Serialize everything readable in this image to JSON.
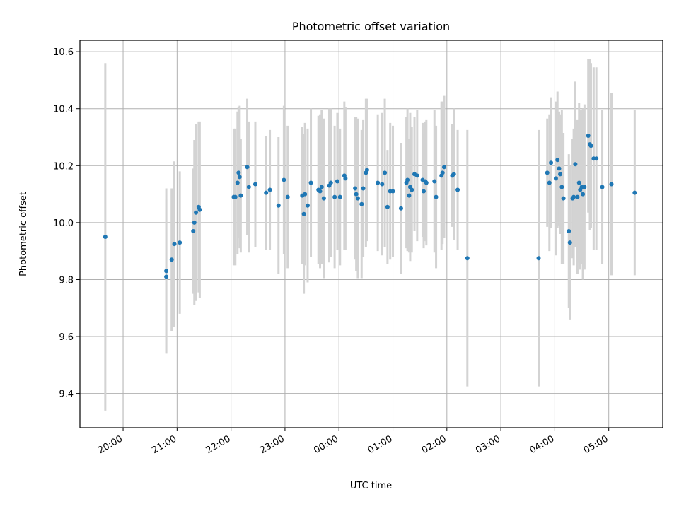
{
  "chart_data": {
    "type": "scatter",
    "title": "Photometric offset variation",
    "xlabel": "UTC time",
    "ylabel": "Photometric offset",
    "x_unit": "hours",
    "xlim": [
      -0.8,
      10.0
    ],
    "ylim": [
      9.28,
      10.64
    ],
    "grid": true,
    "x_ticks": [
      {
        "value": 0.0,
        "label": "20:00"
      },
      {
        "value": 1.0,
        "label": "21:00"
      },
      {
        "value": 2.0,
        "label": "22:00"
      },
      {
        "value": 3.0,
        "label": "23:00"
      },
      {
        "value": 4.0,
        "label": "00:00"
      },
      {
        "value": 5.0,
        "label": "01:00"
      },
      {
        "value": 6.0,
        "label": "02:00"
      },
      {
        "value": 7.0,
        "label": "03:00"
      },
      {
        "value": 8.0,
        "label": "04:00"
      },
      {
        "value": 9.0,
        "label": "05:00"
      }
    ],
    "y_ticks": [
      {
        "value": 9.4,
        "label": "9.4"
      },
      {
        "value": 9.6,
        "label": "9.6"
      },
      {
        "value": 9.8,
        "label": "9.8"
      },
      {
        "value": 10.0,
        "label": "10.0"
      },
      {
        "value": 10.2,
        "label": "10.2"
      },
      {
        "value": 10.4,
        "label": "10.4"
      },
      {
        "value": 10.6,
        "label": "10.6"
      }
    ],
    "marker_color": "#1f77b4",
    "errorbar_color": "#d3d3d3",
    "points": [
      [
        -0.33,
        9.95,
        0.61
      ],
      [
        0.8,
        9.83,
        0.29
      ],
      [
        0.8,
        9.81,
        0.27
      ],
      [
        0.9,
        9.87,
        0.25
      ],
      [
        0.95,
        9.925,
        0.29
      ],
      [
        1.05,
        9.93,
        0.25
      ],
      [
        1.3,
        9.97,
        0.22
      ],
      [
        1.32,
        10.0,
        0.29
      ],
      [
        1.35,
        10.035,
        0.31
      ],
      [
        1.4,
        10.055,
        0.3
      ],
      [
        1.42,
        10.045,
        0.31
      ],
      [
        2.05,
        10.09,
        0.24
      ],
      [
        2.08,
        10.09,
        0.24
      ],
      [
        2.12,
        10.14,
        0.25
      ],
      [
        2.14,
        10.175,
        0.23
      ],
      [
        2.16,
        10.16,
        0.25
      ],
      [
        2.18,
        10.095,
        0.2
      ],
      [
        2.3,
        10.195,
        0.24
      ],
      [
        2.33,
        10.125,
        0.23
      ],
      [
        2.45,
        10.135,
        0.22
      ],
      [
        2.65,
        10.105,
        0.2
      ],
      [
        2.72,
        10.115,
        0.21
      ],
      [
        2.88,
        10.06,
        0.24
      ],
      [
        2.98,
        10.15,
        0.26
      ],
      [
        3.05,
        10.09,
        0.25
      ],
      [
        3.32,
        10.095,
        0.24
      ],
      [
        3.35,
        10.03,
        0.28
      ],
      [
        3.37,
        10.1,
        0.25
      ],
      [
        3.42,
        10.06,
        0.27
      ],
      [
        3.48,
        10.14,
        0.26
      ],
      [
        3.62,
        10.115,
        0.26
      ],
      [
        3.65,
        10.11,
        0.27
      ],
      [
        3.68,
        10.125,
        0.27
      ],
      [
        3.72,
        10.085,
        0.28
      ],
      [
        3.82,
        10.13,
        0.27
      ],
      [
        3.85,
        10.14,
        0.26
      ],
      [
        3.92,
        10.09,
        0.25
      ],
      [
        3.97,
        10.145,
        0.24
      ],
      [
        4.02,
        10.09,
        0.24
      ],
      [
        4.1,
        10.165,
        0.26
      ],
      [
        4.12,
        10.155,
        0.25
      ],
      [
        4.3,
        10.12,
        0.25
      ],
      [
        4.32,
        10.1,
        0.27
      ],
      [
        4.35,
        10.085,
        0.28
      ],
      [
        4.42,
        10.065,
        0.26
      ],
      [
        4.45,
        10.12,
        0.24
      ],
      [
        4.5,
        10.175,
        0.26
      ],
      [
        4.52,
        10.185,
        0.25
      ],
      [
        4.72,
        10.14,
        0.24
      ],
      [
        4.8,
        10.135,
        0.25
      ],
      [
        4.85,
        10.175,
        0.26
      ],
      [
        4.9,
        10.055,
        0.2
      ],
      [
        4.95,
        10.11,
        0.24
      ],
      [
        5.0,
        10.11,
        0.23
      ],
      [
        5.15,
        10.05,
        0.23
      ],
      [
        5.25,
        10.14,
        0.23
      ],
      [
        5.27,
        10.15,
        0.25
      ],
      [
        5.3,
        10.095,
        0.2
      ],
      [
        5.32,
        10.125,
        0.26
      ],
      [
        5.35,
        10.115,
        0.22
      ],
      [
        5.4,
        10.17,
        0.2
      ],
      [
        5.45,
        10.165,
        0.23
      ],
      [
        5.55,
        10.15,
        0.2
      ],
      [
        5.57,
        10.11,
        0.2
      ],
      [
        5.6,
        10.145,
        0.21
      ],
      [
        5.62,
        10.14,
        0.22
      ],
      [
        5.77,
        10.145,
        0.25
      ],
      [
        5.8,
        10.09,
        0.25
      ],
      [
        5.9,
        10.165,
        0.26
      ],
      [
        5.92,
        10.175,
        0.25
      ],
      [
        5.95,
        10.195,
        0.25
      ],
      [
        6.1,
        10.165,
        0.18
      ],
      [
        6.13,
        10.17,
        0.23
      ],
      [
        6.2,
        10.115,
        0.21
      ],
      [
        6.38,
        9.875,
        0.45
      ],
      [
        7.7,
        9.875,
        0.45
      ],
      [
        7.86,
        10.175,
        0.19
      ],
      [
        7.9,
        10.14,
        0.24
      ],
      [
        7.93,
        10.21,
        0.23
      ],
      [
        8.02,
        10.155,
        0.27
      ],
      [
        8.05,
        10.22,
        0.24
      ],
      [
        8.08,
        10.19,
        0.2
      ],
      [
        8.1,
        10.17,
        0.21
      ],
      [
        8.13,
        10.125,
        0.27
      ],
      [
        8.16,
        10.085,
        0.23
      ],
      [
        8.26,
        9.97,
        0.27
      ],
      [
        8.28,
        9.93,
        0.27
      ],
      [
        8.33,
        10.085,
        0.21
      ],
      [
        8.35,
        10.09,
        0.24
      ],
      [
        8.38,
        10.205,
        0.29
      ],
      [
        8.42,
        10.09,
        0.27
      ],
      [
        8.45,
        10.14,
        0.28
      ],
      [
        8.47,
        10.115,
        0.28
      ],
      [
        8.5,
        10.125,
        0.27
      ],
      [
        8.52,
        10.1,
        0.3
      ],
      [
        8.55,
        10.125,
        0.29
      ],
      [
        8.62,
        10.305,
        0.27
      ],
      [
        8.65,
        10.275,
        0.3
      ],
      [
        8.67,
        10.27,
        0.29
      ],
      [
        8.72,
        10.225,
        0.32
      ],
      [
        8.77,
        10.225,
        0.32
      ],
      [
        8.88,
        10.125,
        0.27
      ],
      [
        9.05,
        10.135,
        0.32
      ],
      [
        9.48,
        10.105,
        0.29
      ]
    ]
  }
}
